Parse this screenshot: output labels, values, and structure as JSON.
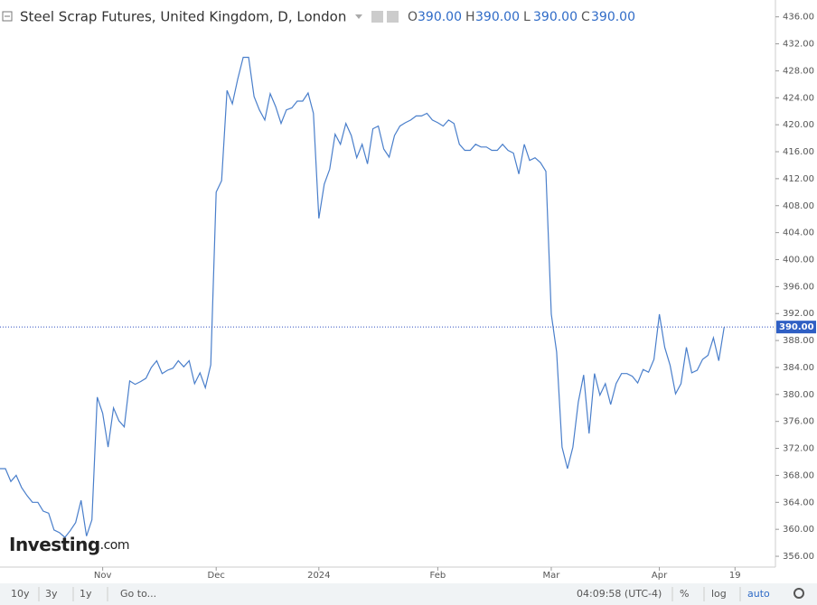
{
  "chart_data": {
    "type": "line",
    "title": "Steel Scrap Futures, United Kingdom, D, London",
    "ohlc": [
      {
        "key": "O",
        "price": "390.00"
      },
      {
        "key": "H",
        "price": "390.00"
      },
      {
        "key": "L",
        "price": "390.00"
      },
      {
        "key": "C",
        "price": "390.00"
      }
    ],
    "categories": [
      null,
      null,
      null,
      null,
      null,
      null,
      null,
      null,
      null,
      null,
      null,
      null,
      null,
      null,
      null,
      null,
      null,
      null,
      null,
      "Nov",
      null,
      null,
      null,
      null,
      null,
      null,
      null,
      null,
      null,
      null,
      null,
      null,
      null,
      null,
      null,
      null,
      null,
      null,
      null,
      null,
      "Dec",
      null,
      null,
      null,
      null,
      null,
      null,
      null,
      null,
      null,
      null,
      null,
      null,
      null,
      null,
      null,
      null,
      null,
      null,
      "2024",
      null,
      null,
      null,
      null,
      null,
      null,
      null,
      null,
      null,
      null,
      null,
      null,
      null,
      null,
      null,
      null,
      null,
      null,
      null,
      null,
      null,
      "Feb",
      null,
      null,
      null,
      null,
      null,
      null,
      null,
      null,
      null,
      null,
      null,
      null,
      null,
      null,
      null,
      null,
      null,
      null,
      null,
      null,
      "Mar",
      null,
      null,
      null,
      null,
      null,
      null,
      null,
      null,
      null,
      null,
      null,
      null,
      null,
      null,
      null,
      null,
      null,
      null,
      null,
      "Apr",
      null,
      null,
      null,
      null,
      null,
      null,
      null,
      null,
      null,
      null,
      null,
      null,
      null,
      "19"
    ],
    "series": [
      {
        "color": "#4a7fcb",
        "values": [
          369,
          369,
          367.1,
          368,
          366.2,
          365,
          364,
          364,
          362.7,
          362.4,
          359.9,
          359.5,
          358.8,
          359.8,
          361,
          364.3,
          359,
          361.4,
          379.6,
          377.2,
          372.2,
          378,
          376.1,
          375.2,
          382,
          381.5,
          381.9,
          382.4,
          384,
          385,
          383.1,
          383.6,
          383.9,
          385,
          384.1,
          385,
          381.6,
          383.2,
          381,
          384.4,
          410,
          411.7,
          425.1,
          423.1,
          426.8,
          430,
          430,
          424.2,
          422.2,
          420.7,
          424.6,
          422.7,
          420.2,
          422.2,
          422.5,
          423.5,
          423.5,
          424.7,
          421.7,
          406.1,
          411.2,
          413.4,
          418.6,
          417.1,
          420.2,
          418.4,
          415.1,
          417.1,
          414.2,
          419.4,
          419.8,
          416.4,
          415.2,
          418.4,
          419.8,
          420.3,
          420.7,
          421.3,
          421.3,
          421.7,
          420.7,
          420.3,
          419.8,
          420.7,
          420.2,
          417.1,
          416.2,
          416.2,
          417.1,
          416.7,
          416.7,
          416.2,
          416.2,
          417.1,
          416.2,
          415.8,
          412.7,
          417.1,
          414.7,
          415.1,
          414.4,
          413.1,
          391.9,
          386.3,
          372.2,
          369,
          372.2,
          378.9,
          382.9,
          374.2,
          383.1,
          379.9,
          381.6,
          378.5,
          381.6,
          383.1,
          383.1,
          382.7,
          381.7,
          383.7,
          383.3,
          385.2,
          391.9,
          387,
          384.3,
          380.1,
          381.6,
          387,
          383.2,
          383.6,
          385.2,
          385.8,
          388.4,
          385,
          390,
          null,
          null
        ]
      }
    ],
    "last_price_label": "390.00",
    "ylim": [
      354.4,
      438.5
    ],
    "yticks": [
      {
        "value": 436,
        "label": "436.00"
      },
      {
        "value": 432,
        "label": "432.00"
      },
      {
        "value": 428,
        "label": "428.00"
      },
      {
        "value": 424,
        "label": "424.00"
      },
      {
        "value": 420,
        "label": "420.00"
      },
      {
        "value": 416,
        "label": "416.00"
      },
      {
        "value": 412,
        "label": "412.00"
      },
      {
        "value": 408,
        "label": "408.00"
      },
      {
        "value": 404,
        "label": "404.00"
      },
      {
        "value": 400,
        "label": "400.00"
      },
      {
        "value": 396,
        "label": "396.00"
      },
      {
        "value": 392,
        "label": "392.00"
      },
      {
        "value": 388,
        "label": "388.00"
      },
      {
        "value": 384,
        "label": "384.00"
      },
      {
        "value": 380,
        "label": "380.00"
      },
      {
        "value": 376,
        "label": "376.00"
      },
      {
        "value": 372,
        "label": "372.00"
      },
      {
        "value": 368,
        "label": "368.00"
      },
      {
        "value": 364,
        "label": "364.00"
      },
      {
        "value": 360,
        "label": "360.00"
      },
      {
        "value": 356,
        "label": "356.00"
      }
    ],
    "logo": {
      "brand": "Investing",
      "suffix": ".com"
    }
  },
  "toolbar": {
    "ranges": [
      "10y",
      "3y",
      "1y"
    ],
    "goto": "Go to...",
    "clock": "04:09:58 (UTC-4)",
    "options": [
      "%",
      "log",
      "auto"
    ]
  }
}
